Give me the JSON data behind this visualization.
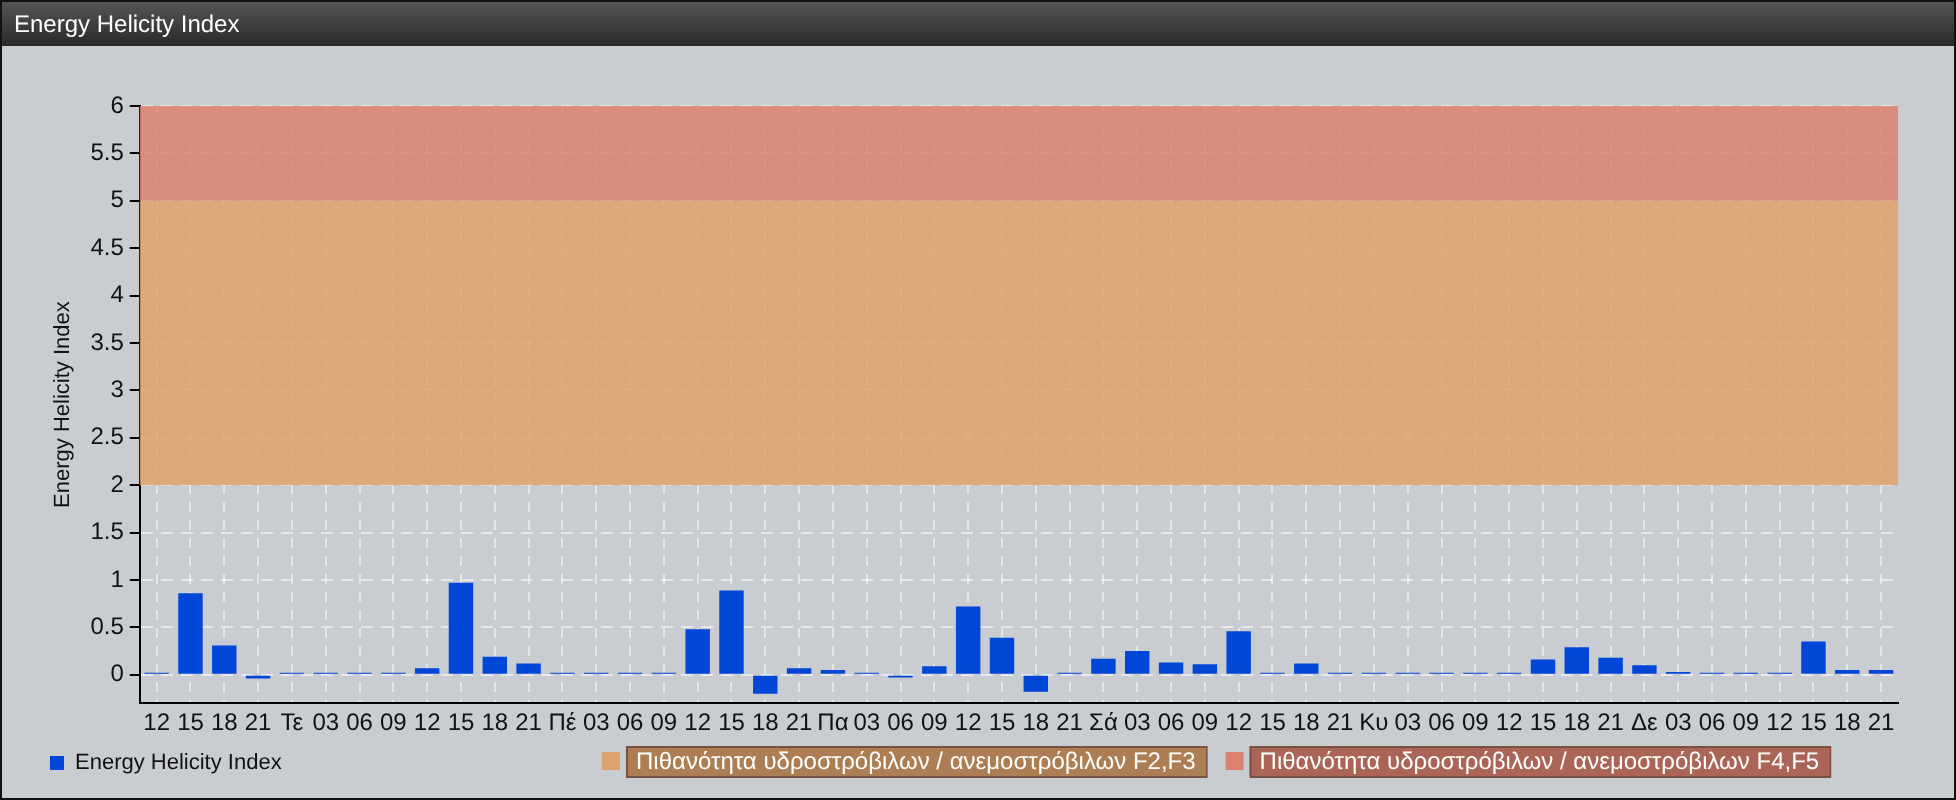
{
  "chart_data": {
    "type": "bar",
    "title": "Energy Helicity Index",
    "ylabel": "Energy Helicity Index",
    "categories": [
      "12",
      "15",
      "18",
      "21",
      "Τε",
      "03",
      "06",
      "09",
      "12",
      "15",
      "18",
      "21",
      "Πέ",
      "03",
      "06",
      "09",
      "12",
      "15",
      "18",
      "21",
      "Πα",
      "03",
      "06",
      "09",
      "12",
      "15",
      "18",
      "21",
      "Σά",
      "03",
      "06",
      "09",
      "12",
      "15",
      "18",
      "21",
      "Κυ",
      "03",
      "06",
      "09",
      "12",
      "15",
      "18",
      "21",
      "Δε",
      "03",
      "06",
      "09",
      "12",
      "15",
      "18",
      "21"
    ],
    "series": [
      {
        "name": "Energy Helicity Index",
        "color": "#0047d8",
        "values": [
          0.02,
          0.86,
          0.31,
          -0.04,
          0.02,
          0.02,
          0.02,
          0.02,
          0.07,
          0.97,
          0.19,
          0.12,
          0.02,
          0.02,
          0.02,
          0.02,
          0.48,
          0.89,
          -0.2,
          0.07,
          0.05,
          0.02,
          -0.03,
          0.09,
          0.72,
          0.39,
          -0.18,
          0.02,
          0.17,
          0.25,
          0.13,
          0.11,
          0.46,
          0.02,
          0.12,
          0.02,
          0.02,
          0.02,
          0.02,
          0.02,
          0.02,
          0.16,
          0.29,
          0.18,
          0.1,
          0.03,
          0.02,
          0.02,
          0.02,
          0.35,
          0.05,
          0.05
        ]
      }
    ],
    "ylim": [
      -0.3,
      6
    ],
    "yticks": [
      0,
      0.5,
      1,
      1.5,
      2,
      2.5,
      3,
      3.5,
      4,
      4.5,
      5,
      5.5,
      6
    ],
    "bands": [
      {
        "axis": "y",
        "from": 2,
        "to": 5,
        "label": "Πιθανότητα υδροστρόβιλων / ανεμοστρόβιλων F2,F3",
        "color": "#dea26c"
      },
      {
        "axis": "y",
        "from": 5,
        "to": 6,
        "label": "Πιθανότητα υδροστρόβιλων / ανεμοστρόβιλων F4,F5",
        "color": "#dc826f"
      }
    ],
    "grid": true,
    "legend": "bottom left"
  }
}
